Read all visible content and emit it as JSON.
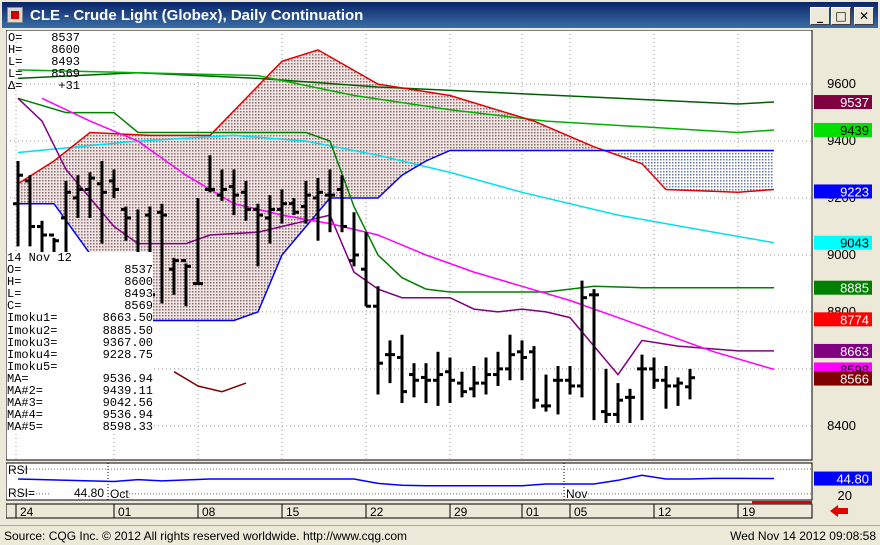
{
  "window": {
    "title": "CLE - Crude Light (Globex), Daily Continuation",
    "minimize_icon": "minimize-icon",
    "maximize_icon": "maximize-icon",
    "close_icon": "close-icon"
  },
  "top_readout": [
    {
      "label": "O=",
      "value": "8537"
    },
    {
      "label": "H=",
      "value": "8600"
    },
    {
      "label": "L=",
      "value": "8493"
    },
    {
      "label": "L=",
      "value": "8569"
    },
    {
      "label": "Δ=",
      "value": "+31"
    }
  ],
  "bottom_readout": {
    "date": "14 Nov 12",
    "rows": [
      {
        "label": "O=",
        "value": "8537"
      },
      {
        "label": "H=",
        "value": "8600"
      },
      {
        "label": "L=",
        "value": "8493"
      },
      {
        "label": "C=",
        "value": "8569"
      },
      {
        "label": "Imoku1=",
        "value": "8663.50"
      },
      {
        "label": "Imoku2=",
        "value": "8885.50"
      },
      {
        "label": "Imoku3=",
        "value": "9367.00"
      },
      {
        "label": "Imoku4=",
        "value": "9228.75"
      },
      {
        "label": "Imoku5=",
        "value": ""
      },
      {
        "label": "MA=",
        "value": "9536.94"
      },
      {
        "label": "MA#2=",
        "value": "9439.11"
      },
      {
        "label": "MA#3=",
        "value": "9042.56"
      },
      {
        "label": "MA#4=",
        "value": "9536.94"
      },
      {
        "label": "MA#5=",
        "value": "8598.33"
      }
    ]
  },
  "rsi_panel": {
    "label": "RSI",
    "readout_label": "RSI=",
    "readout_value": "44.80",
    "current_value": 44.8,
    "current_label": "44.80",
    "level_label": "20"
  },
  "colors": {
    "chart_bg": "#ffffff",
    "cloud_fill": "#c8b4b4",
    "tenkan": "#800080",
    "kijun": "#008000",
    "senkou_a": "#e00000",
    "senkou_b": "#0000ff",
    "ma_green": "#00b000",
    "ma_cyan": "#00e0f0",
    "ma_magenta": "#ff00ff",
    "ma_darkgreen": "#006000",
    "rsi": "#0000ff",
    "price_bar": "#000000"
  },
  "chart_data": {
    "type": "ohlc",
    "title": "CLE - Crude Light (Globex), Daily Continuation",
    "y_range": [
      8280,
      9790
    ],
    "y_ticks": [
      "9600",
      "9400",
      "9200",
      "9000",
      "8800",
      "8600",
      "8400"
    ],
    "x_ticks": [
      "24",
      "01",
      "08",
      "15",
      "22",
      "29",
      "01",
      "05",
      "12",
      "19"
    ],
    "month_labels": [
      "Oct",
      "Nov"
    ],
    "grid": true,
    "price_tags": [
      {
        "label": "9537",
        "value": 9537,
        "bg": "#800040",
        "fg": "#ffffff"
      },
      {
        "label": "9439",
        "value": 9439,
        "bg": "#00e000",
        "fg": "#000000"
      },
      {
        "label": "9223",
        "value": 9223,
        "bg": "#0000ff",
        "fg": "#ffffff"
      },
      {
        "label": "9043",
        "value": 9043,
        "bg": "#00ffff",
        "fg": "#000000"
      },
      {
        "label": "8885",
        "value": 8885,
        "bg": "#008000",
        "fg": "#ffffff"
      },
      {
        "label": "8774",
        "value": 8774,
        "bg": "#ff0000",
        "fg": "#ffffff"
      },
      {
        "label": "8663",
        "value": 8663,
        "bg": "#800080",
        "fg": "#ffffff"
      },
      {
        "label": "8598",
        "value": 8598,
        "bg": "#ff00ff",
        "fg": "#000000"
      },
      {
        "label": "8566",
        "value": 8566,
        "bg": "#800000",
        "fg": "#ffffff"
      }
    ],
    "bars": [
      {
        "o": 9180,
        "h": 9330,
        "l": 9030,
        "c": 9280
      },
      {
        "o": 9260,
        "h": 9280,
        "l": 9030,
        "c": 9100
      },
      {
        "o": 9100,
        "h": 9120,
        "l": 8970,
        "c": 9070
      },
      {
        "o": 9070,
        "h": 9060,
        "l": 8970,
        "c": 9050
      },
      {
        "o": 9130,
        "h": 9260,
        "l": 8970,
        "c": 9220
      },
      {
        "o": 9200,
        "h": 9280,
        "l": 9130,
        "c": 9230
      },
      {
        "o": 9230,
        "h": 9290,
        "l": 9130,
        "c": 9270
      },
      {
        "o": 9250,
        "h": 9330,
        "l": 9040,
        "c": 9220
      },
      {
        "o": 9260,
        "h": 9300,
        "l": 9200,
        "c": 9230
      },
      {
        "o": 9160,
        "h": 9170,
        "l": 9050,
        "c": 9130
      },
      {
        "o": 8800,
        "h": 9160,
        "l": 8790,
        "c": 8800
      },
      {
        "o": 9140,
        "h": 9170,
        "l": 8830,
        "c": 8860
      },
      {
        "o": 9150,
        "h": 9180,
        "l": 8830,
        "c": 9140
      },
      {
        "o": 8950,
        "h": 8990,
        "l": 8860,
        "c": 8980
      },
      {
        "o": 8980,
        "h": 8970,
        "l": 8820,
        "c": 8960
      },
      {
        "o": 8900,
        "h": 9200,
        "l": 8900,
        "c": 8900
      },
      {
        "o": 9230,
        "h": 9350,
        "l": 9220,
        "c": 9230
      },
      {
        "o": 9210,
        "h": 9300,
        "l": 9190,
        "c": 9230
      },
      {
        "o": 9240,
        "h": 9300,
        "l": 9140,
        "c": 9210
      },
      {
        "o": 9220,
        "h": 9260,
        "l": 9120,
        "c": 9160
      },
      {
        "o": 9160,
        "h": 9180,
        "l": 8960,
        "c": 9140
      },
      {
        "o": 9130,
        "h": 9210,
        "l": 9040,
        "c": 9160
      },
      {
        "o": 9160,
        "h": 9230,
        "l": 9110,
        "c": 9180
      },
      {
        "o": 9180,
        "h": 9200,
        "l": 9140,
        "c": 9150
      },
      {
        "o": 9170,
        "h": 9260,
        "l": 9110,
        "c": 9210
      },
      {
        "o": 9200,
        "h": 9270,
        "l": 9050,
        "c": 9220
      },
      {
        "o": 9210,
        "h": 9300,
        "l": 9080,
        "c": 9210
      },
      {
        "o": 9230,
        "h": 9280,
        "l": 9080,
        "c": 9100
      },
      {
        "o": 8980,
        "h": 9150,
        "l": 8960,
        "c": 9000
      },
      {
        "o": 8950,
        "h": 9080,
        "l": 8820,
        "c": 8820
      },
      {
        "o": 8820,
        "h": 8890,
        "l": 8510,
        "c": 8620
      },
      {
        "o": 8650,
        "h": 8700,
        "l": 8550,
        "c": 8650
      },
      {
        "o": 8640,
        "h": 8720,
        "l": 8480,
        "c": 8520
      },
      {
        "o": 8580,
        "h": 8620,
        "l": 8500,
        "c": 8560
      },
      {
        "o": 8570,
        "h": 8620,
        "l": 8480,
        "c": 8560
      },
      {
        "o": 8560,
        "h": 8660,
        "l": 8470,
        "c": 8580
      },
      {
        "o": 8590,
        "h": 8640,
        "l": 8480,
        "c": 8560
      },
      {
        "o": 8550,
        "h": 8590,
        "l": 8500,
        "c": 8520
      },
      {
        "o": 8530,
        "h": 8610,
        "l": 8500,
        "c": 8550
      },
      {
        "o": 8550,
        "h": 8640,
        "l": 8510,
        "c": 8580
      },
      {
        "o": 8580,
        "h": 8660,
        "l": 8540,
        "c": 8600
      },
      {
        "o": 8600,
        "h": 8720,
        "l": 8560,
        "c": 8650
      },
      {
        "o": 8660,
        "h": 8700,
        "l": 8560,
        "c": 8640
      },
      {
        "o": 8660,
        "h": 8680,
        "l": 8460,
        "c": 8490
      },
      {
        "o": 8470,
        "h": 8580,
        "l": 8450,
        "c": 8470
      },
      {
        "o": 8560,
        "h": 8610,
        "l": 8440,
        "c": 8560
      },
      {
        "o": 8560,
        "h": 8610,
        "l": 8510,
        "c": 8540
      },
      {
        "o": 8540,
        "h": 8910,
        "l": 8500,
        "c": 8850
      },
      {
        "o": 8860,
        "h": 8880,
        "l": 8420,
        "c": 8860
      },
      {
        "o": 8450,
        "h": 8600,
        "l": 8410,
        "c": 8440
      },
      {
        "o": 8440,
        "h": 8550,
        "l": 8410,
        "c": 8490
      },
      {
        "o": 8500,
        "h": 8530,
        "l": 8410,
        "c": 8500
      },
      {
        "o": 8600,
        "h": 8650,
        "l": 8420,
        "c": 8600
      },
      {
        "o": 8600,
        "h": 8640,
        "l": 8530,
        "c": 8560
      },
      {
        "o": 8560,
        "h": 8610,
        "l": 8460,
        "c": 8540
      },
      {
        "o": 8540,
        "h": 8570,
        "l": 8470,
        "c": 8550
      },
      {
        "o": 8537,
        "h": 8600,
        "l": 8493,
        "c": 8569
      }
    ],
    "senkou_a": [
      [
        0,
        9250
      ],
      [
        3,
        9330
      ],
      [
        6,
        9430
      ],
      [
        11,
        9420
      ],
      [
        16,
        9420
      ],
      [
        22,
        9680
      ],
      [
        25,
        9720
      ],
      [
        30,
        9600
      ],
      [
        36,
        9560
      ],
      [
        43,
        9470
      ],
      [
        48,
        9380
      ],
      [
        52,
        9320
      ],
      [
        54,
        9230
      ],
      [
        60,
        9220
      ],
      [
        63,
        9230
      ]
    ],
    "senkou_b": [
      [
        0,
        9180
      ],
      [
        3,
        9180
      ],
      [
        10,
        8770
      ],
      [
        18,
        8770
      ],
      [
        20,
        8800
      ],
      [
        22,
        9000
      ],
      [
        24,
        9100
      ],
      [
        26,
        9200
      ],
      [
        28,
        9200
      ],
      [
        30,
        9200
      ],
      [
        32,
        9280
      ],
      [
        34,
        9330
      ],
      [
        36,
        9367
      ],
      [
        63,
        9367
      ]
    ],
    "tenkan": [
      [
        0,
        9550
      ],
      [
        2,
        9470
      ],
      [
        4,
        9300
      ],
      [
        6,
        9200
      ],
      [
        8,
        9100
      ],
      [
        10,
        9040
      ],
      [
        14,
        9040
      ],
      [
        16,
        9070
      ],
      [
        20,
        9080
      ],
      [
        22,
        9100
      ],
      [
        24,
        9120
      ],
      [
        26,
        9140
      ],
      [
        28,
        8940
      ],
      [
        30,
        8880
      ],
      [
        32,
        8850
      ],
      [
        36,
        8850
      ],
      [
        38,
        8810
      ],
      [
        40,
        8800
      ],
      [
        42,
        8810
      ],
      [
        44,
        8800
      ],
      [
        46,
        8780
      ],
      [
        48,
        8680
      ],
      [
        50,
        8580
      ],
      [
        52,
        8700
      ],
      [
        55,
        8680
      ],
      [
        60,
        8663
      ],
      [
        63,
        8663
      ]
    ],
    "kijun": [
      [
        0,
        9550
      ],
      [
        4,
        9500
      ],
      [
        8,
        9500
      ],
      [
        10,
        9430
      ],
      [
        14,
        9430
      ],
      [
        20,
        9430
      ],
      [
        24,
        9430
      ],
      [
        26,
        9400
      ],
      [
        28,
        9170
      ],
      [
        30,
        9000
      ],
      [
        32,
        8920
      ],
      [
        34,
        8880
      ],
      [
        36,
        8870
      ],
      [
        40,
        8870
      ],
      [
        44,
        8870
      ],
      [
        48,
        8890
      ],
      [
        52,
        8885
      ],
      [
        63,
        8885
      ]
    ],
    "ma_green": [
      [
        0,
        9620
      ],
      [
        10,
        9640
      ],
      [
        20,
        9620
      ],
      [
        30,
        9590
      ],
      [
        40,
        9570
      ],
      [
        50,
        9550
      ],
      [
        60,
        9530
      ],
      [
        63,
        9537
      ]
    ],
    "ma_light_green": [
      [
        0,
        9650
      ],
      [
        10,
        9640
      ],
      [
        20,
        9630
      ],
      [
        28,
        9560
      ],
      [
        36,
        9510
      ],
      [
        44,
        9470
      ],
      [
        52,
        9450
      ],
      [
        60,
        9430
      ],
      [
        63,
        9439
      ]
    ],
    "ma_cyan": [
      [
        0,
        9360
      ],
      [
        10,
        9400
      ],
      [
        18,
        9420
      ],
      [
        24,
        9400
      ],
      [
        30,
        9350
      ],
      [
        36,
        9290
      ],
      [
        42,
        9220
      ],
      [
        50,
        9140
      ],
      [
        58,
        9080
      ],
      [
        63,
        9043
      ]
    ],
    "ma_magenta": [
      [
        2,
        9550
      ],
      [
        6,
        9470
      ],
      [
        10,
        9400
      ],
      [
        14,
        9280
      ],
      [
        18,
        9180
      ],
      [
        22,
        9140
      ],
      [
        26,
        9110
      ],
      [
        30,
        9070
      ],
      [
        34,
        9000
      ],
      [
        38,
        8940
      ],
      [
        42,
        8890
      ],
      [
        46,
        8840
      ],
      [
        50,
        8780
      ],
      [
        54,
        8720
      ],
      [
        58,
        8660
      ],
      [
        63,
        8598
      ]
    ],
    "chikou": [
      [
        13,
        8590
      ],
      [
        15,
        8540
      ],
      [
        17,
        8520
      ],
      [
        19,
        8550
      ]
    ],
    "rsi": [
      [
        0,
        44
      ],
      [
        4,
        42
      ],
      [
        8,
        40
      ],
      [
        10,
        43
      ],
      [
        12,
        41
      ],
      [
        16,
        44
      ],
      [
        20,
        44
      ],
      [
        24,
        44
      ],
      [
        28,
        44
      ],
      [
        30,
        37
      ],
      [
        32,
        34
      ],
      [
        34,
        33
      ],
      [
        38,
        33
      ],
      [
        42,
        33
      ],
      [
        44,
        36
      ],
      [
        48,
        36
      ],
      [
        50,
        42
      ],
      [
        52,
        50
      ],
      [
        54,
        44
      ],
      [
        56,
        44
      ],
      [
        58,
        45
      ],
      [
        60,
        45
      ],
      [
        63,
        44.8
      ]
    ]
  },
  "status": {
    "copyright": "Source: CQG Inc. © 2012 All rights reserved worldwide. http://www.cqg.com",
    "timestamp": "Wed Nov 14 2012 09:08:58"
  }
}
